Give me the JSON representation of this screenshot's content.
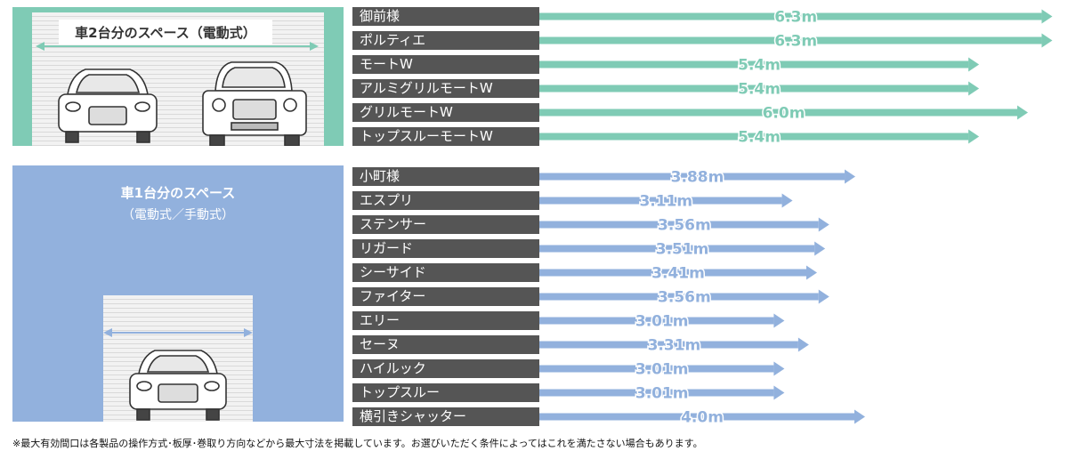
{
  "panels": {
    "top_caption": "車2台分のスペース（電動式）",
    "bottom_caption_line1": "車1台分のスペース",
    "bottom_caption_line2": "（電動式／手動式）"
  },
  "footnote": "※最大有効間口は各製品の操作方式･板厚･巻取り方向などから最大寸法を掲載しています。お選びいただく条件によってはこれを満たさない場合もあります。",
  "chart_data": [
    {
      "type": "bar",
      "group": "車2台分のスペース（電動式）",
      "bar_color": "#7fcbb5",
      "categories": [
        "御前様",
        "ポルティエ",
        "モートW",
        "アルミグリルモートW",
        "グリルモートW",
        "トップスルーモートW"
      ],
      "values": [
        6.3,
        6.3,
        5.4,
        5.4,
        6.0,
        5.4
      ],
      "value_labels": [
        "6.3m",
        "6.3m",
        "5.4m",
        "5.4m",
        "6.0m",
        "5.4m"
      ],
      "unit": "m"
    },
    {
      "type": "bar",
      "group": "車1台分のスペース（電動式／手動式）",
      "bar_color": "#92b1dd",
      "categories": [
        "小町様",
        "エスプリ",
        "ステンサー",
        "リガード",
        "シーサイド",
        "ファイター",
        "エリー",
        "セーヌ",
        "ハイルック",
        "トップスルー",
        "横引きシャッター"
      ],
      "values": [
        3.88,
        3.11,
        3.56,
        3.51,
        3.41,
        3.56,
        3.01,
        3.31,
        3.01,
        3.01,
        4.0
      ],
      "value_labels": [
        "3.88m",
        "3.11m",
        "3.56m",
        "3.51m",
        "3.41m",
        "3.56m",
        "3.01m",
        "3.31m",
        "3.01m",
        "3.01m",
        "4.0m"
      ],
      "unit": "m"
    }
  ]
}
